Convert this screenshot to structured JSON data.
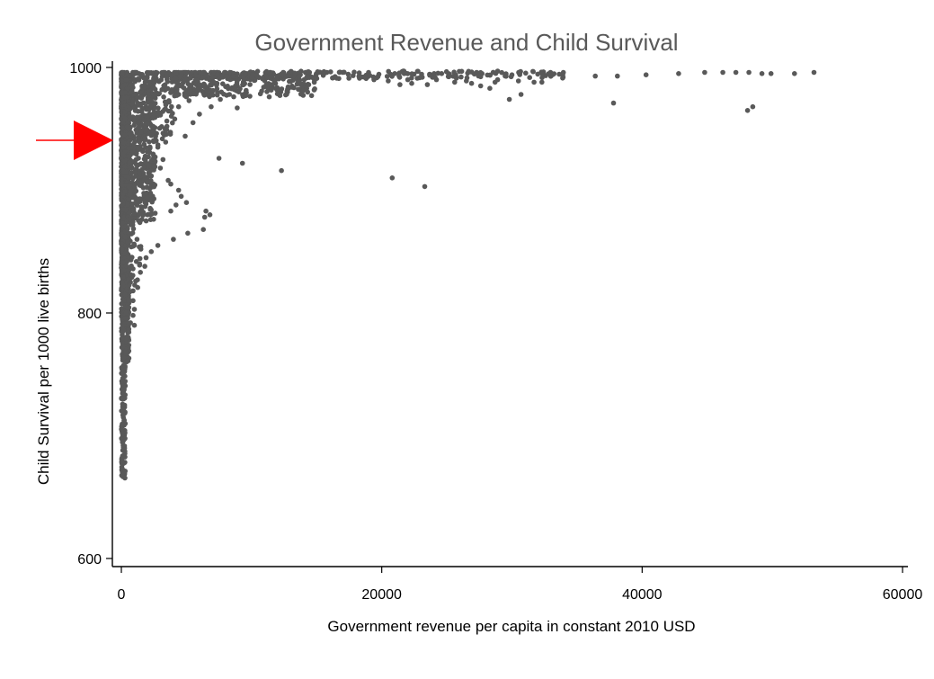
{
  "chart_data": {
    "type": "scatter",
    "title": "Government Revenue and Child Survival",
    "xlabel": "Government revenue per capita in constant 2010 USD",
    "ylabel": "Child Survival per 1000 live births",
    "xlim": [
      0,
      60000
    ],
    "ylim": [
      600,
      1000
    ],
    "xticks": [
      0,
      20000,
      40000,
      60000
    ],
    "yticks": [
      600,
      800,
      1000
    ],
    "xtick_labels": [
      "0",
      "20000",
      "40000",
      "60000"
    ],
    "ytick_labels": [
      "600",
      "800",
      "1000"
    ],
    "grid": false,
    "legend": "none",
    "marker_color": "#595959",
    "annotation": {
      "type": "arrow",
      "color": "#ff0000",
      "y": 942
    },
    "points": [
      [
        13100,
        996
      ],
      [
        17000,
        996
      ],
      [
        21000,
        995
      ],
      [
        24600,
        995
      ],
      [
        27700,
        995
      ],
      [
        30000,
        994
      ],
      [
        33900,
        994
      ],
      [
        36400,
        993
      ],
      [
        38100,
        993
      ],
      [
        40300,
        994
      ],
      [
        42800,
        995
      ],
      [
        44800,
        996
      ],
      [
        46200,
        996
      ],
      [
        47200,
        996
      ],
      [
        48200,
        996
      ],
      [
        49200,
        995
      ],
      [
        49900,
        995
      ],
      [
        51700,
        995
      ],
      [
        53200,
        996
      ],
      [
        22000,
        990
      ],
      [
        22300,
        987
      ],
      [
        23500,
        986
      ],
      [
        20500,
        989
      ],
      [
        21400,
        986
      ],
      [
        25600,
        988
      ],
      [
        24200,
        990
      ],
      [
        28700,
        988
      ],
      [
        28900,
        990
      ],
      [
        30500,
        989
      ],
      [
        31700,
        988
      ],
      [
        32300,
        988
      ],
      [
        26500,
        989
      ],
      [
        26900,
        987
      ],
      [
        16700,
        991
      ],
      [
        18800,
        991
      ],
      [
        19400,
        990
      ],
      [
        27600,
        985
      ],
      [
        28300,
        983
      ],
      [
        29800,
        974
      ],
      [
        30700,
        978
      ],
      [
        37800,
        971
      ],
      [
        48100,
        965
      ],
      [
        48500,
        968
      ],
      [
        20800,
        910
      ],
      [
        23300,
        903
      ],
      [
        12300,
        916
      ],
      [
        9300,
        922
      ],
      [
        7500,
        926
      ],
      [
        8900,
        967
      ],
      [
        3600,
        908
      ],
      [
        3800,
        905
      ],
      [
        4400,
        900
      ],
      [
        4600,
        895
      ],
      [
        4200,
        888
      ],
      [
        5000,
        890
      ],
      [
        3800,
        883
      ],
      [
        6500,
        883
      ],
      [
        6400,
        878
      ],
      [
        6800,
        880
      ],
      [
        6300,
        868
      ],
      [
        5100,
        865
      ],
      [
        4000,
        860
      ],
      [
        2800,
        855
      ],
      [
        2300,
        850
      ],
      [
        1900,
        845
      ],
      [
        1400,
        840
      ],
      [
        900,
        836
      ],
      [
        1800,
        838
      ],
      [
        1100,
        826
      ],
      [
        700,
        825
      ],
      [
        900,
        818
      ],
      [
        900,
        810
      ],
      [
        1000,
        803
      ],
      [
        900,
        798
      ],
      [
        1000,
        790
      ],
      [
        700,
        792
      ],
      [
        500,
        784
      ],
      [
        1500,
        852
      ],
      [
        1200,
        860
      ],
      [
        2000,
        880
      ],
      [
        2500,
        893
      ],
      [
        3000,
        918
      ],
      [
        3200,
        925
      ],
      [
        2800,
        935
      ],
      [
        3500,
        952
      ],
      [
        4100,
        958
      ],
      [
        4900,
        944
      ],
      [
        5500,
        955
      ],
      [
        6000,
        962
      ],
      [
        6900,
        968
      ],
      [
        7600,
        974
      ],
      [
        8300,
        978
      ],
      [
        5200,
        973
      ],
      [
        3300,
        945
      ],
      [
        4400,
        968
      ],
      [
        2600,
        975
      ],
      [
        1900,
        968
      ],
      [
        2400,
        962
      ]
    ]
  }
}
